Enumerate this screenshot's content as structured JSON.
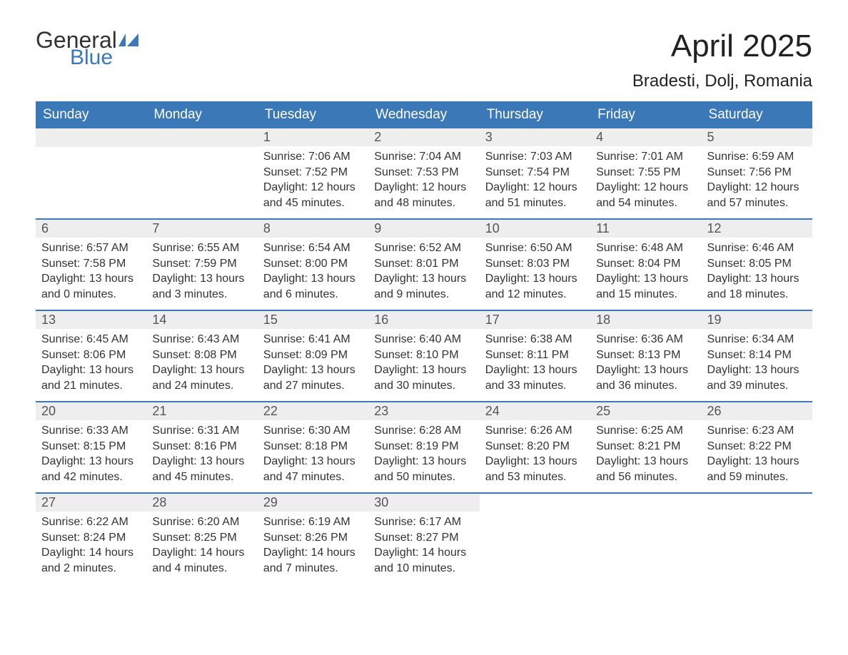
{
  "logo": {
    "text1": "General",
    "text2": "Blue",
    "color_dark": "#333333",
    "color_blue": "#3a78b8"
  },
  "title": "April 2025",
  "subtitle": "Bradesti, Dolj, Romania",
  "colors": {
    "header_bg": "#3a78b8",
    "header_text": "#ffffff",
    "daynum_bg": "#eeeeee",
    "daynum_text": "#555555",
    "body_text": "#333333",
    "row_border": "#3a78b8",
    "page_bg": "#ffffff"
  },
  "fonts": {
    "title_size_pt": 33,
    "subtitle_size_pt": 18,
    "dayheader_size_pt": 14,
    "cell_size_pt": 12
  },
  "day_headers": [
    "Sunday",
    "Monday",
    "Tuesday",
    "Wednesday",
    "Thursday",
    "Friday",
    "Saturday"
  ],
  "weeks": [
    [
      {
        "n": "",
        "sunrise": "",
        "sunset": "",
        "daylight": ""
      },
      {
        "n": "",
        "sunrise": "",
        "sunset": "",
        "daylight": ""
      },
      {
        "n": "1",
        "sunrise": "Sunrise: 7:06 AM",
        "sunset": "Sunset: 7:52 PM",
        "daylight": "Daylight: 12 hours and 45 minutes."
      },
      {
        "n": "2",
        "sunrise": "Sunrise: 7:04 AM",
        "sunset": "Sunset: 7:53 PM",
        "daylight": "Daylight: 12 hours and 48 minutes."
      },
      {
        "n": "3",
        "sunrise": "Sunrise: 7:03 AM",
        "sunset": "Sunset: 7:54 PM",
        "daylight": "Daylight: 12 hours and 51 minutes."
      },
      {
        "n": "4",
        "sunrise": "Sunrise: 7:01 AM",
        "sunset": "Sunset: 7:55 PM",
        "daylight": "Daylight: 12 hours and 54 minutes."
      },
      {
        "n": "5",
        "sunrise": "Sunrise: 6:59 AM",
        "sunset": "Sunset: 7:56 PM",
        "daylight": "Daylight: 12 hours and 57 minutes."
      }
    ],
    [
      {
        "n": "6",
        "sunrise": "Sunrise: 6:57 AM",
        "sunset": "Sunset: 7:58 PM",
        "daylight": "Daylight: 13 hours and 0 minutes."
      },
      {
        "n": "7",
        "sunrise": "Sunrise: 6:55 AM",
        "sunset": "Sunset: 7:59 PM",
        "daylight": "Daylight: 13 hours and 3 minutes."
      },
      {
        "n": "8",
        "sunrise": "Sunrise: 6:54 AM",
        "sunset": "Sunset: 8:00 PM",
        "daylight": "Daylight: 13 hours and 6 minutes."
      },
      {
        "n": "9",
        "sunrise": "Sunrise: 6:52 AM",
        "sunset": "Sunset: 8:01 PM",
        "daylight": "Daylight: 13 hours and 9 minutes."
      },
      {
        "n": "10",
        "sunrise": "Sunrise: 6:50 AM",
        "sunset": "Sunset: 8:03 PM",
        "daylight": "Daylight: 13 hours and 12 minutes."
      },
      {
        "n": "11",
        "sunrise": "Sunrise: 6:48 AM",
        "sunset": "Sunset: 8:04 PM",
        "daylight": "Daylight: 13 hours and 15 minutes."
      },
      {
        "n": "12",
        "sunrise": "Sunrise: 6:46 AM",
        "sunset": "Sunset: 8:05 PM",
        "daylight": "Daylight: 13 hours and 18 minutes."
      }
    ],
    [
      {
        "n": "13",
        "sunrise": "Sunrise: 6:45 AM",
        "sunset": "Sunset: 8:06 PM",
        "daylight": "Daylight: 13 hours and 21 minutes."
      },
      {
        "n": "14",
        "sunrise": "Sunrise: 6:43 AM",
        "sunset": "Sunset: 8:08 PM",
        "daylight": "Daylight: 13 hours and 24 minutes."
      },
      {
        "n": "15",
        "sunrise": "Sunrise: 6:41 AM",
        "sunset": "Sunset: 8:09 PM",
        "daylight": "Daylight: 13 hours and 27 minutes."
      },
      {
        "n": "16",
        "sunrise": "Sunrise: 6:40 AM",
        "sunset": "Sunset: 8:10 PM",
        "daylight": "Daylight: 13 hours and 30 minutes."
      },
      {
        "n": "17",
        "sunrise": "Sunrise: 6:38 AM",
        "sunset": "Sunset: 8:11 PM",
        "daylight": "Daylight: 13 hours and 33 minutes."
      },
      {
        "n": "18",
        "sunrise": "Sunrise: 6:36 AM",
        "sunset": "Sunset: 8:13 PM",
        "daylight": "Daylight: 13 hours and 36 minutes."
      },
      {
        "n": "19",
        "sunrise": "Sunrise: 6:34 AM",
        "sunset": "Sunset: 8:14 PM",
        "daylight": "Daylight: 13 hours and 39 minutes."
      }
    ],
    [
      {
        "n": "20",
        "sunrise": "Sunrise: 6:33 AM",
        "sunset": "Sunset: 8:15 PM",
        "daylight": "Daylight: 13 hours and 42 minutes."
      },
      {
        "n": "21",
        "sunrise": "Sunrise: 6:31 AM",
        "sunset": "Sunset: 8:16 PM",
        "daylight": "Daylight: 13 hours and 45 minutes."
      },
      {
        "n": "22",
        "sunrise": "Sunrise: 6:30 AM",
        "sunset": "Sunset: 8:18 PM",
        "daylight": "Daylight: 13 hours and 47 minutes."
      },
      {
        "n": "23",
        "sunrise": "Sunrise: 6:28 AM",
        "sunset": "Sunset: 8:19 PM",
        "daylight": "Daylight: 13 hours and 50 minutes."
      },
      {
        "n": "24",
        "sunrise": "Sunrise: 6:26 AM",
        "sunset": "Sunset: 8:20 PM",
        "daylight": "Daylight: 13 hours and 53 minutes."
      },
      {
        "n": "25",
        "sunrise": "Sunrise: 6:25 AM",
        "sunset": "Sunset: 8:21 PM",
        "daylight": "Daylight: 13 hours and 56 minutes."
      },
      {
        "n": "26",
        "sunrise": "Sunrise: 6:23 AM",
        "sunset": "Sunset: 8:22 PM",
        "daylight": "Daylight: 13 hours and 59 minutes."
      }
    ],
    [
      {
        "n": "27",
        "sunrise": "Sunrise: 6:22 AM",
        "sunset": "Sunset: 8:24 PM",
        "daylight": "Daylight: 14 hours and 2 minutes."
      },
      {
        "n": "28",
        "sunrise": "Sunrise: 6:20 AM",
        "sunset": "Sunset: 8:25 PM",
        "daylight": "Daylight: 14 hours and 4 minutes."
      },
      {
        "n": "29",
        "sunrise": "Sunrise: 6:19 AM",
        "sunset": "Sunset: 8:26 PM",
        "daylight": "Daylight: 14 hours and 7 minutes."
      },
      {
        "n": "30",
        "sunrise": "Sunrise: 6:17 AM",
        "sunset": "Sunset: 8:27 PM",
        "daylight": "Daylight: 14 hours and 10 minutes."
      },
      {
        "n": "",
        "sunrise": "",
        "sunset": "",
        "daylight": ""
      },
      {
        "n": "",
        "sunrise": "",
        "sunset": "",
        "daylight": ""
      },
      {
        "n": "",
        "sunrise": "",
        "sunset": "",
        "daylight": ""
      }
    ]
  ]
}
